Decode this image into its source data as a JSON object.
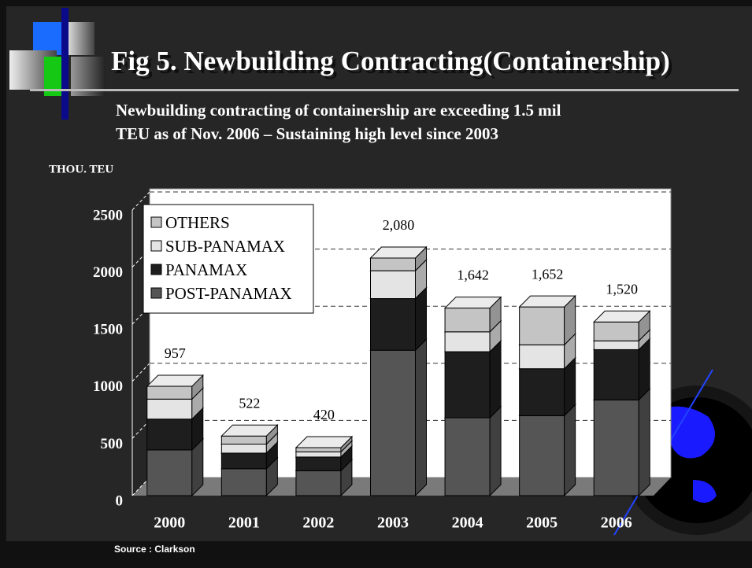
{
  "chart_data": {
    "type": "stacked_bar_3d",
    "title": "Fig 5. Newbuilding Contracting(Containership)",
    "subtitle": [
      "Newbuilding contracting of containership are exceeding 1.5 mil",
      "TEU as of Nov. 2006 – Sustaining high level since 2003"
    ],
    "y_axis_label": "THOU. TEU",
    "source": "Source : Clarkson",
    "categories": [
      "2000",
      "2001",
      "2002",
      "2003",
      "2004",
      "2005",
      "2006"
    ],
    "series": [
      {
        "name": "POST-PANAMAX",
        "color": "#555555",
        "values": [
          400,
          236,
          218,
          1273,
          682,
          700,
          838
        ]
      },
      {
        "name": "PANAMAX",
        "color": "#1e1e1e",
        "values": [
          270,
          136,
          120,
          452,
          578,
          411,
          440
        ]
      },
      {
        "name": "SUB-PANAMAX",
        "color": "#e4e4e4",
        "values": [
          175,
          79,
          45,
          244,
          174,
          209,
          77
        ]
      },
      {
        "name": "OTHERS",
        "color": "#c4c4c4",
        "values": [
          112,
          71,
          37,
          111,
          208,
          332,
          165
        ]
      }
    ],
    "totals": {
      "values": [
        957,
        522,
        420,
        2080,
        1642,
        1652,
        1520
      ],
      "value_labels": [
        "957",
        "522",
        "420",
        "2,080",
        "1,642",
        "1,652",
        "1,520"
      ]
    },
    "ylim": [
      0,
      2500
    ],
    "yticks": [
      0,
      500,
      1000,
      1500,
      2000,
      2500
    ],
    "grid": true,
    "legend": "top-left"
  }
}
